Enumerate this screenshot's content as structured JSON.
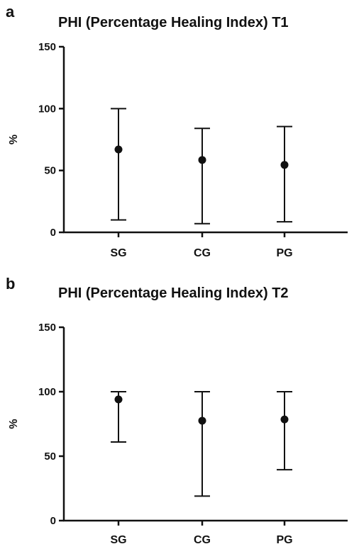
{
  "chart_data": [
    {
      "panel_label": "a",
      "type": "scatter",
      "title": "PHI (Percentage Healing Index) T1",
      "xlabel": "",
      "ylabel": "%",
      "ylim": [
        0,
        150
      ],
      "yticks": [
        0,
        50,
        100,
        150
      ],
      "categories": [
        "SG",
        "CG",
        "PG"
      ],
      "values": [
        67,
        58.5,
        54.5
      ],
      "error_low": [
        10,
        7,
        8.5
      ],
      "error_high": [
        100,
        84,
        85.5
      ],
      "grid": false
    },
    {
      "panel_label": "b",
      "type": "scatter",
      "title": "PHI (Percentage Healing Index) T2",
      "xlabel": "",
      "ylabel": "%",
      "ylim": [
        0,
        150
      ],
      "yticks": [
        0,
        50,
        100,
        150
      ],
      "categories": [
        "SG",
        "CG",
        "PG"
      ],
      "values": [
        94,
        77.5,
        78.5
      ],
      "error_low": [
        61,
        19,
        39.5
      ],
      "error_high": [
        100,
        100,
        100
      ],
      "grid": false
    }
  ]
}
